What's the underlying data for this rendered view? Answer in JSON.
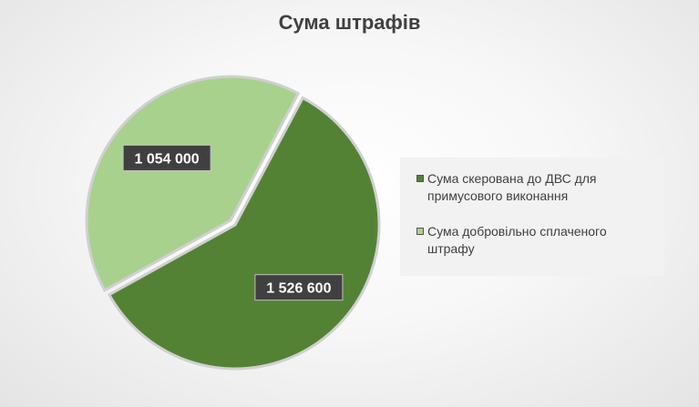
{
  "chart_data": {
    "type": "pie",
    "title": "Сума штрафів",
    "labels": [
      "Сума скерована до ДВС для примусового виконання",
      "Сума добровільно сплаченого штрафу"
    ],
    "values": [
      1526600,
      1054000
    ],
    "value_labels": [
      "1 526 600",
      "1 054 000"
    ],
    "colors": [
      "#548235",
      "#a9d18e"
    ],
    "exploded_slice": 1,
    "legend_position": "right",
    "start_angle_deg": -62
  }
}
